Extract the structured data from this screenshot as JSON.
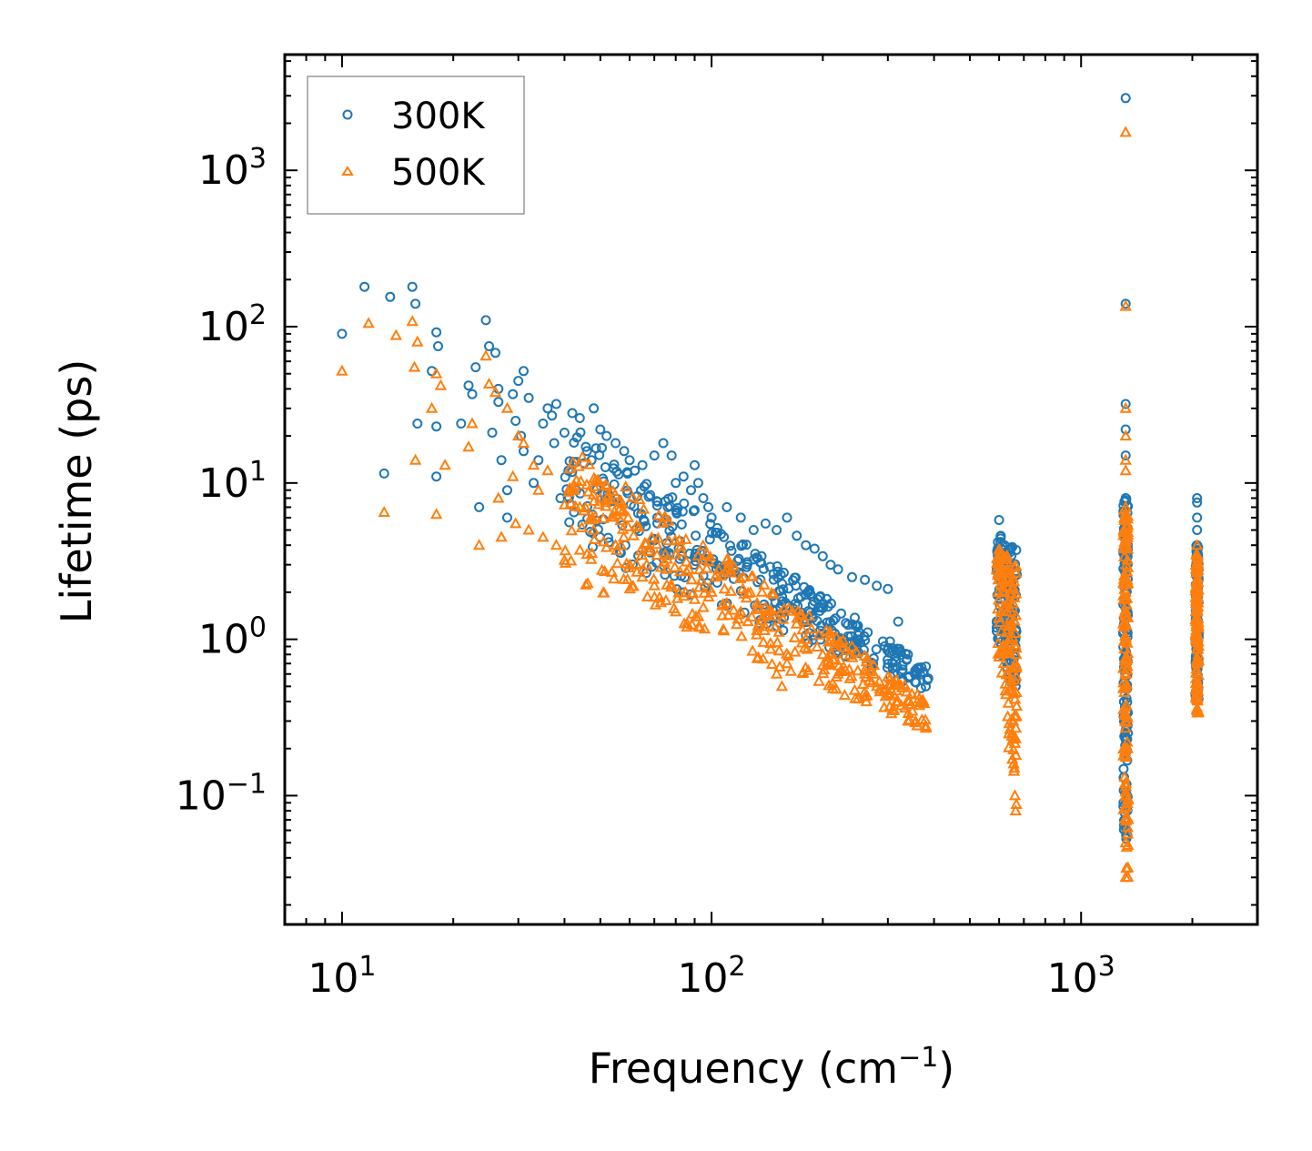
{
  "chart_data": {
    "type": "scatter",
    "title": "",
    "xlabel": "Frequency (cm",
    "xlabel_exponent": "−1",
    "xlabel_suffix": ")",
    "ylabel": "Lifetime (ps)",
    "xscale": "log",
    "yscale": "log",
    "xlim": [
      7,
      3000
    ],
    "ylim": [
      0.015,
      5500
    ],
    "x_ticks": [
      {
        "value": 10,
        "base": "10",
        "exp": "1"
      },
      {
        "value": 100,
        "base": "10",
        "exp": "2"
      },
      {
        "value": 1000,
        "base": "10",
        "exp": "3"
      }
    ],
    "y_ticks": [
      {
        "value": 0.1,
        "base": "10",
        "exp": "−1"
      },
      {
        "value": 1,
        "base": "10",
        "exp": "0"
      },
      {
        "value": 10,
        "base": "10",
        "exp": "1"
      },
      {
        "value": 100,
        "base": "10",
        "exp": "2"
      },
      {
        "value": 1000,
        "base": "10",
        "exp": "3"
      }
    ],
    "legend_position": "top-left",
    "series": [
      {
        "name": "300K",
        "color": "#1f77b4",
        "marker": "circle",
        "points": [
          [
            10,
            90
          ],
          [
            11.5,
            180
          ],
          [
            13,
            11.5
          ],
          [
            13.5,
            155
          ],
          [
            15.5,
            180
          ],
          [
            15.8,
            140
          ],
          [
            16,
            24
          ],
          [
            17.5,
            52
          ],
          [
            18,
            92
          ],
          [
            18.2,
            75
          ],
          [
            18,
            23
          ],
          [
            18,
            11
          ],
          [
            21,
            24
          ],
          [
            22,
            42
          ],
          [
            22.5,
            37
          ],
          [
            23,
            55
          ],
          [
            23.5,
            7
          ],
          [
            24.5,
            110
          ],
          [
            25,
            75
          ],
          [
            25.5,
            21
          ],
          [
            26,
            68
          ],
          [
            26.5,
            40
          ],
          [
            26.5,
            33
          ],
          [
            27,
            14
          ],
          [
            28,
            9
          ],
          [
            28,
            6
          ],
          [
            29,
            37
          ],
          [
            29.5,
            25
          ],
          [
            30,
            45
          ],
          [
            30.5,
            20
          ],
          [
            31,
            52
          ],
          [
            31,
            16
          ],
          [
            32,
            35
          ],
          [
            33,
            10
          ],
          [
            34,
            14
          ],
          [
            35,
            24
          ],
          [
            36,
            30
          ],
          [
            37,
            27
          ],
          [
            37.5,
            18
          ],
          [
            38,
            32
          ],
          [
            39,
            8
          ],
          [
            40,
            21
          ],
          [
            41,
            12
          ],
          [
            42,
            28
          ],
          [
            43,
            9
          ],
          [
            44,
            26
          ],
          [
            46,
            16
          ],
          [
            48,
            30
          ],
          [
            50,
            22
          ],
          [
            52,
            20
          ],
          [
            55,
            18
          ],
          [
            58,
            16
          ],
          [
            60,
            14
          ],
          [
            62,
            12
          ],
          [
            65,
            13
          ],
          [
            70,
            15
          ],
          [
            74,
            18
          ],
          [
            78,
            15
          ],
          [
            80,
            10
          ],
          [
            84,
            11
          ],
          [
            88,
            9
          ],
          [
            90,
            13
          ],
          [
            92,
            10
          ],
          [
            95,
            8
          ],
          [
            98,
            7
          ],
          [
            100,
            6
          ],
          [
            110,
            7
          ],
          [
            120,
            6
          ],
          [
            130,
            5
          ],
          [
            140,
            5.5
          ],
          [
            150,
            5
          ],
          [
            160,
            6
          ],
          [
            170,
            4.6
          ],
          [
            180,
            4
          ],
          [
            190,
            3.8
          ],
          [
            200,
            3.4
          ],
          [
            210,
            3.0
          ],
          [
            220,
            2.8
          ],
          [
            240,
            2.5
          ],
          [
            260,
            2.4
          ],
          [
            280,
            2.2
          ],
          [
            300,
            2.1
          ],
          [
            320,
            1.3
          ],
          [
            340,
            0.8
          ],
          [
            360,
            0.6
          ],
          [
            380,
            0.5
          ],
          [
            600,
            5.8
          ],
          [
            605,
            4.2
          ],
          [
            610,
            3.5
          ],
          [
            620,
            3
          ],
          [
            630,
            2.5
          ],
          [
            640,
            2.2
          ],
          [
            650,
            1.5
          ],
          [
            655,
            1.0
          ],
          [
            660,
            0.8
          ],
          [
            665,
            0.5
          ],
          [
            1320,
            2900
          ],
          [
            1320,
            140
          ],
          [
            1320,
            32
          ],
          [
            1320,
            22
          ],
          [
            1320,
            15
          ],
          [
            1320,
            8
          ],
          [
            1320,
            5
          ],
          [
            1320,
            3
          ],
          [
            1320,
            2
          ],
          [
            1320,
            1.2
          ],
          [
            1320,
            0.8
          ],
          [
            1320,
            0.5
          ],
          [
            1320,
            0.3
          ],
          [
            1320,
            0.2
          ],
          [
            2060,
            8
          ],
          [
            2060,
            7.5
          ],
          [
            2060,
            6
          ],
          [
            2060,
            5
          ],
          [
            2060,
            4
          ],
          [
            2060,
            3
          ],
          [
            2060,
            2
          ],
          [
            2060,
            1.5
          ],
          [
            2060,
            1
          ]
        ],
        "bands": [
          {
            "x": [
              40,
              390
            ],
            "y_low_start": 4,
            "y_low_end": 0.45,
            "y_high_start": 25,
            "y_high_end": 0.65
          },
          {
            "x": [
              590,
              670
            ],
            "y_low_start": 1.0,
            "y_low_end": 0.35,
            "y_high_start": 5.0,
            "y_high_end": 4.0
          },
          {
            "x": [
              1300,
              1340
            ],
            "y_low_start": 0.05,
            "y_low_end": 0.05,
            "y_high_start": 9,
            "y_high_end": 9
          },
          {
            "x": [
              2040,
              2080
            ],
            "y_low_start": 0.4,
            "y_low_end": 0.4,
            "y_high_start": 4,
            "y_high_end": 4
          }
        ]
      },
      {
        "name": "500K",
        "color": "#ff7f0e",
        "marker": "triangle",
        "points": [
          [
            10,
            52
          ],
          [
            11.8,
            105
          ],
          [
            13,
            6.5
          ],
          [
            14,
            88
          ],
          [
            15.5,
            108
          ],
          [
            15.7,
            55
          ],
          [
            15.8,
            14
          ],
          [
            16,
            80
          ],
          [
            17.5,
            30
          ],
          [
            18,
            50
          ],
          [
            18,
            6.3
          ],
          [
            18.5,
            42
          ],
          [
            19,
            13
          ],
          [
            22,
            17
          ],
          [
            22.5,
            24
          ],
          [
            23.5,
            4
          ],
          [
            24.5,
            65
          ],
          [
            25,
            43
          ],
          [
            26,
            38
          ],
          [
            26.5,
            8
          ],
          [
            27,
            4.5
          ],
          [
            28,
            30
          ],
          [
            29,
            11
          ],
          [
            29.5,
            5.5
          ],
          [
            30,
            20
          ],
          [
            31,
            18
          ],
          [
            32,
            5
          ],
          [
            33,
            13
          ],
          [
            34,
            9
          ],
          [
            35,
            4.5
          ],
          [
            36,
            12
          ],
          [
            38,
            4
          ],
          [
            40,
            3.2
          ],
          [
            42,
            9
          ],
          [
            44,
            7
          ],
          [
            46,
            3.5
          ],
          [
            48,
            5
          ],
          [
            50,
            8
          ],
          [
            55,
            4
          ],
          [
            60,
            3
          ],
          [
            65,
            2.5
          ],
          [
            70,
            2.2
          ],
          [
            75,
            3.5
          ],
          [
            80,
            1.5
          ],
          [
            85,
            2
          ],
          [
            90,
            1.8
          ],
          [
            95,
            1.6
          ],
          [
            100,
            2
          ],
          [
            110,
            1.7
          ],
          [
            120,
            1.5
          ],
          [
            140,
            1.6
          ],
          [
            150,
            0.6
          ],
          [
            155,
            0.5
          ],
          [
            160,
            0.7
          ],
          [
            180,
            1
          ],
          [
            200,
            0.8
          ],
          [
            220,
            0.6
          ],
          [
            240,
            0.9
          ],
          [
            260,
            0.6
          ],
          [
            280,
            0.5
          ],
          [
            300,
            0.45
          ],
          [
            320,
            0.4
          ],
          [
            340,
            0.3
          ],
          [
            360,
            0.28
          ],
          [
            380,
            0.27
          ],
          [
            600,
            3.5
          ],
          [
            610,
            2.5
          ],
          [
            620,
            2
          ],
          [
            630,
            1.5
          ],
          [
            640,
            1
          ],
          [
            650,
            0.5
          ],
          [
            655,
            0.3
          ],
          [
            660,
            0.15
          ],
          [
            662,
            0.1
          ],
          [
            665,
            0.08
          ],
          [
            1320,
            1750
          ],
          [
            1320,
            135
          ],
          [
            1320,
            30
          ],
          [
            1320,
            20
          ],
          [
            1320,
            14
          ],
          [
            1320,
            12
          ],
          [
            1320,
            7
          ],
          [
            1320,
            4
          ],
          [
            1320,
            2
          ],
          [
            1320,
            1
          ],
          [
            1320,
            0.5
          ],
          [
            1320,
            0.2
          ],
          [
            1320,
            0.1
          ],
          [
            1320,
            0.05
          ],
          [
            1320,
            0.03
          ],
          [
            2060,
            4
          ],
          [
            2060,
            3
          ],
          [
            2060,
            2
          ],
          [
            2060,
            1.5
          ],
          [
            2060,
            1
          ],
          [
            2060,
            0.7
          ],
          [
            2060,
            0.5
          ],
          [
            2060,
            0.35
          ]
        ],
        "bands": [
          {
            "x": [
              40,
              390
            ],
            "y_low_start": 2.5,
            "y_low_end": 0.25,
            "y_high_start": 18,
            "y_high_end": 0.4
          },
          {
            "x": [
              590,
              670
            ],
            "y_low_start": 0.8,
            "y_low_end": 0.08,
            "y_high_start": 4.0,
            "y_high_end": 3.0
          },
          {
            "x": [
              1300,
              1340
            ],
            "y_low_start": 0.028,
            "y_low_end": 0.028,
            "y_high_start": 7,
            "y_high_end": 7
          },
          {
            "x": [
              2040,
              2080
            ],
            "y_low_start": 0.33,
            "y_low_end": 0.33,
            "y_high_start": 3.5,
            "y_high_end": 3.5
          }
        ]
      }
    ]
  }
}
